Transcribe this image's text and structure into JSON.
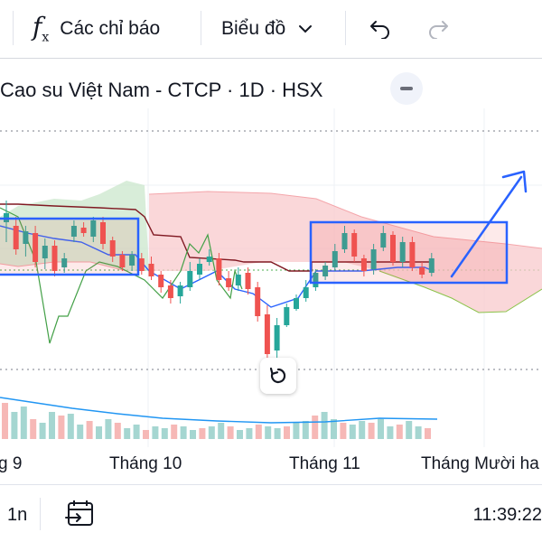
{
  "toolbar": {
    "indicators_label": "Các chỉ báo",
    "chart_type_label": "Biểu đồ",
    "icons": [
      "function-icon",
      "chevron-down-icon",
      "undo-icon",
      "redo-icon"
    ]
  },
  "legend": {
    "title": "Cao su Việt Nam - CTCP · 1D · HSX"
  },
  "time_axis": {
    "labels": [
      "g 9",
      "Tháng 10",
      "Tháng 11",
      "Tháng Mười ha"
    ]
  },
  "bottom_bar": {
    "interval": "1n",
    "clock": "11:39:22"
  },
  "colors": {
    "up": "#26a69a",
    "down": "#ef5350",
    "ichimoku_cloud_bear": "#f8c9cc",
    "ichimoku_cloud_bull": "#c8e6c9",
    "tenkan": "#2962ff",
    "kijun": "#801922",
    "chikou": "#43a047",
    "volume_ma": "#2196f3",
    "annotation": "#2962ff"
  }
}
